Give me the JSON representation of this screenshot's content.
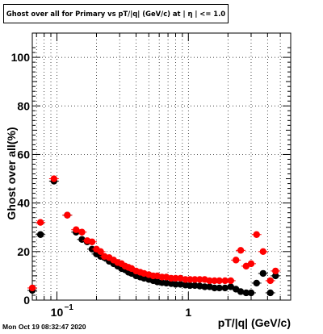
{
  "title": "Ghost over all for Primary vs pT/|q| (GeV/c) at |  η | <= 1.0",
  "timestamp": "Mon Oct 19 08:32:47 2020",
  "chart_data": {
    "type": "scatter",
    "title": "Ghost over all for Primary vs pT/|q| (GeV/c) at |  η | <= 1.0",
    "xlabel": "pT/|q| (GeV/c)",
    "ylabel": "Ghost over all(%)",
    "xscale": "log",
    "xlim": [
      0.065,
      6.0
    ],
    "ylim": [
      0,
      110
    ],
    "x_tick_labels": [
      "10^-1",
      "1"
    ],
    "y_ticks": [
      0,
      20,
      40,
      60,
      80,
      100
    ],
    "grid": true,
    "legend": "none",
    "series": [
      {
        "color": "#000000",
        "points": [
          [
            0.065,
            4.0
          ],
          [
            0.075,
            27.0
          ],
          [
            0.095,
            49.0
          ],
          [
            0.12,
            35.0
          ],
          [
            0.14,
            28.0
          ],
          [
            0.155,
            25.0
          ],
          [
            0.17,
            24.0
          ],
          [
            0.185,
            21.0
          ],
          [
            0.2,
            19.0
          ],
          [
            0.215,
            18.0
          ],
          [
            0.23,
            17.5
          ],
          [
            0.25,
            16.0
          ],
          [
            0.27,
            15.0
          ],
          [
            0.29,
            14.0
          ],
          [
            0.31,
            13.0
          ],
          [
            0.33,
            12.5
          ],
          [
            0.35,
            11.5
          ],
          [
            0.37,
            11.0
          ],
          [
            0.4,
            10.0
          ],
          [
            0.43,
            9.5
          ],
          [
            0.46,
            9.0
          ],
          [
            0.5,
            8.5
          ],
          [
            0.54,
            8.0
          ],
          [
            0.58,
            7.5
          ],
          [
            0.63,
            7.2
          ],
          [
            0.68,
            7.0
          ],
          [
            0.74,
            6.8
          ],
          [
            0.8,
            6.5
          ],
          [
            0.87,
            6.5
          ],
          [
            0.95,
            6.2
          ],
          [
            1.03,
            6.0
          ],
          [
            1.12,
            6.0
          ],
          [
            1.22,
            5.8
          ],
          [
            1.33,
            5.5
          ],
          [
            1.45,
            5.5
          ],
          [
            1.58,
            5.0
          ],
          [
            1.72,
            5.0
          ],
          [
            1.9,
            5.0
          ],
          [
            2.1,
            5.5
          ],
          [
            2.3,
            4.5
          ],
          [
            2.5,
            3.5
          ],
          [
            2.75,
            3.0
          ],
          [
            3.0,
            3.0
          ],
          [
            3.3,
            7.0
          ],
          [
            3.7,
            11.0
          ],
          [
            4.2,
            3.0
          ],
          [
            4.6,
            10.0
          ]
        ]
      },
      {
        "color": "#ff0000",
        "points": [
          [
            0.065,
            5.0
          ],
          [
            0.075,
            32.0
          ],
          [
            0.095,
            50.0
          ],
          [
            0.12,
            35.0
          ],
          [
            0.14,
            29.0
          ],
          [
            0.155,
            28.0
          ],
          [
            0.17,
            24.5
          ],
          [
            0.185,
            24.0
          ],
          [
            0.2,
            21.0
          ],
          [
            0.215,
            20.0
          ],
          [
            0.23,
            18.0
          ],
          [
            0.25,
            17.5
          ],
          [
            0.27,
            16.5
          ],
          [
            0.29,
            15.5
          ],
          [
            0.31,
            15.0
          ],
          [
            0.33,
            14.0
          ],
          [
            0.35,
            13.5
          ],
          [
            0.37,
            13.0
          ],
          [
            0.4,
            12.0
          ],
          [
            0.43,
            11.5
          ],
          [
            0.46,
            11.0
          ],
          [
            0.5,
            10.5
          ],
          [
            0.54,
            10.0
          ],
          [
            0.58,
            10.0
          ],
          [
            0.63,
            9.5
          ],
          [
            0.68,
            9.5
          ],
          [
            0.74,
            9.0
          ],
          [
            0.8,
            9.0
          ],
          [
            0.87,
            9.0
          ],
          [
            0.95,
            8.5
          ],
          [
            1.03,
            8.5
          ],
          [
            1.12,
            8.5
          ],
          [
            1.22,
            8.5
          ],
          [
            1.33,
            8.5
          ],
          [
            1.45,
            8.0
          ],
          [
            1.58,
            8.0
          ],
          [
            1.72,
            8.0
          ],
          [
            1.9,
            8.0
          ],
          [
            2.1,
            8.0
          ],
          [
            2.3,
            16.5
          ],
          [
            2.5,
            20.5
          ],
          [
            2.75,
            14.0
          ],
          [
            3.0,
            15.0
          ],
          [
            3.3,
            27.0
          ],
          [
            3.7,
            20.0
          ],
          [
            4.2,
            8.0
          ],
          [
            4.6,
            12.0
          ]
        ]
      }
    ]
  }
}
